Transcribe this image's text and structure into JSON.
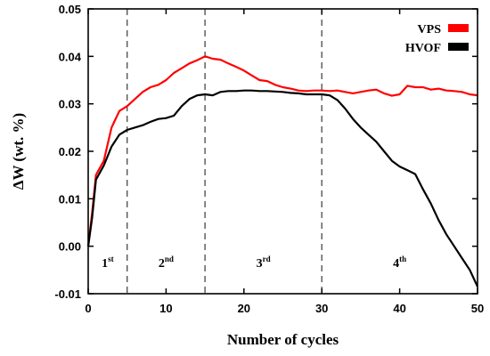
{
  "chart_data": {
    "type": "line",
    "xlabel": "Number of cycles",
    "ylabel": "ΔW (wt. %)",
    "xlim": [
      0,
      50
    ],
    "ylim": [
      -0.01,
      0.05
    ],
    "x_ticks": [
      0,
      10,
      20,
      30,
      40,
      50
    ],
    "y_ticks": [
      -0.01,
      0.0,
      0.01,
      0.02,
      0.03,
      0.04,
      0.05
    ],
    "x_tick_labels": [
      "0",
      "10",
      "20",
      "30",
      "40",
      "50"
    ],
    "y_tick_labels": [
      "-0.01",
      "0.00",
      "0.01",
      "0.02",
      "0.03",
      "0.04",
      "0.05"
    ],
    "grid": false,
    "legend_position": "top-right",
    "vertical_dashed_lines": [
      5,
      15,
      30
    ],
    "stages": [
      {
        "base": "1",
        "sup": "st",
        "x": 2.5
      },
      {
        "base": "2",
        "sup": "nd",
        "x": 10
      },
      {
        "base": "3",
        "sup": "rd",
        "x": 22.5
      },
      {
        "base": "4",
        "sup": "th",
        "x": 40
      }
    ],
    "series": [
      {
        "name": "VPS",
        "color": "#ff0000",
        "x": [
          0,
          0.5,
          1,
          2,
          3,
          4,
          5,
          6,
          7,
          8,
          9,
          10,
          11,
          12,
          13,
          14,
          15,
          16,
          17,
          18,
          19,
          20,
          21,
          22,
          23,
          24,
          25,
          26,
          27,
          28,
          29,
          30,
          31,
          32,
          33,
          34,
          35,
          36,
          37,
          38,
          39,
          40,
          41,
          42,
          43,
          44,
          45,
          46,
          47,
          48,
          49,
          50
        ],
        "y": [
          0.0,
          0.007,
          0.015,
          0.018,
          0.025,
          0.0285,
          0.0295,
          0.031,
          0.0325,
          0.0335,
          0.034,
          0.035,
          0.0365,
          0.0375,
          0.0385,
          0.0392,
          0.04,
          0.0395,
          0.0393,
          0.0385,
          0.0378,
          0.037,
          0.036,
          0.035,
          0.0348,
          0.034,
          0.0335,
          0.0332,
          0.0328,
          0.0327,
          0.0328,
          0.0328,
          0.0327,
          0.0328,
          0.0325,
          0.0322,
          0.0325,
          0.0328,
          0.033,
          0.0322,
          0.0317,
          0.032,
          0.0338,
          0.0335,
          0.0335,
          0.033,
          0.0332,
          0.0328,
          0.0327,
          0.0325,
          0.032,
          0.0318
        ]
      },
      {
        "name": "HVOF",
        "color": "#000000",
        "x": [
          0,
          0.5,
          1,
          2,
          3,
          4,
          5,
          6,
          7,
          8,
          9,
          10,
          11,
          12,
          13,
          14,
          15,
          16,
          17,
          18,
          19,
          20,
          21,
          22,
          23,
          24,
          25,
          26,
          27,
          28,
          29,
          30,
          31,
          32,
          33,
          34,
          35,
          36,
          37,
          38,
          39,
          40,
          41,
          42,
          43,
          44,
          45,
          46,
          47,
          48,
          49,
          50
        ],
        "y": [
          0.0,
          0.006,
          0.014,
          0.017,
          0.021,
          0.0235,
          0.0245,
          0.025,
          0.0255,
          0.0262,
          0.0268,
          0.027,
          0.0275,
          0.0295,
          0.031,
          0.0318,
          0.032,
          0.0318,
          0.0325,
          0.0327,
          0.0327,
          0.0328,
          0.0328,
          0.0327,
          0.0327,
          0.0326,
          0.0325,
          0.0323,
          0.0322,
          0.032,
          0.032,
          0.032,
          0.0318,
          0.0308,
          0.029,
          0.0268,
          0.025,
          0.0235,
          0.022,
          0.02,
          0.018,
          0.0168,
          0.016,
          0.0152,
          0.012,
          0.009,
          0.0055,
          0.0025,
          0.0,
          -0.0025,
          -0.005,
          -0.0085
        ]
      }
    ]
  }
}
